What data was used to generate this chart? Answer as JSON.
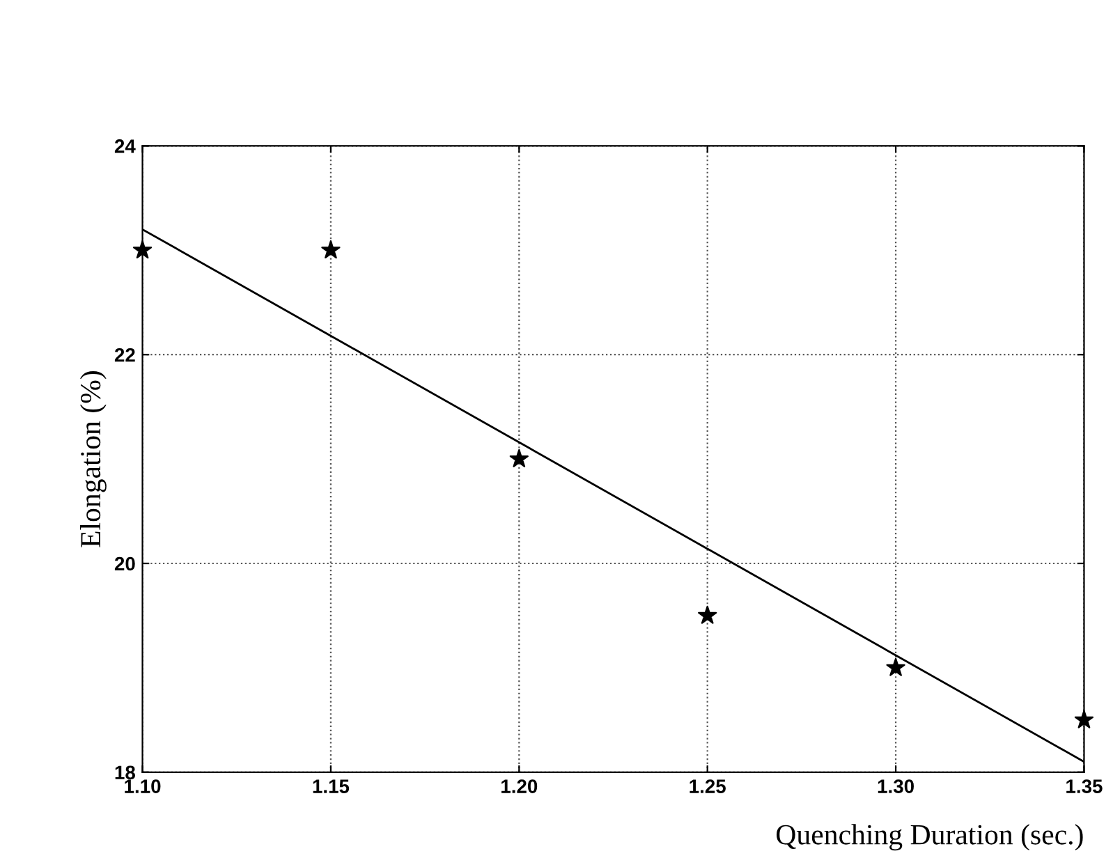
{
  "chart_data": {
    "type": "scatter",
    "xlabel": "Quenching Duration (sec.)",
    "ylabel": "Elongation (%)",
    "series": [
      {
        "color": "#000000",
        "marker": "star",
        "x": [
          1.1,
          1.15,
          1.2,
          1.25,
          1.3,
          1.35
        ],
        "values": [
          23,
          23,
          21,
          19.5,
          19,
          18.5
        ]
      },
      {
        "type": "line",
        "color": "#000000",
        "x": [
          1.1,
          1.35
        ],
        "values": [
          23.2,
          18.1
        ]
      }
    ],
    "xlim": [
      1.1,
      1.35
    ],
    "ylim": [
      18,
      24
    ],
    "xticks": [
      {
        "value": 1.1,
        "label": "1.10"
      },
      {
        "value": 1.15,
        "label": "1.15"
      },
      {
        "value": 1.2,
        "label": "1.20"
      },
      {
        "value": 1.25,
        "label": "1.25"
      },
      {
        "value": 1.3,
        "label": "1.30"
      },
      {
        "value": 1.35,
        "label": "1.35"
      }
    ],
    "yticks": [
      18,
      20,
      22,
      24
    ],
    "grid": true,
    "line_style": "solid"
  }
}
